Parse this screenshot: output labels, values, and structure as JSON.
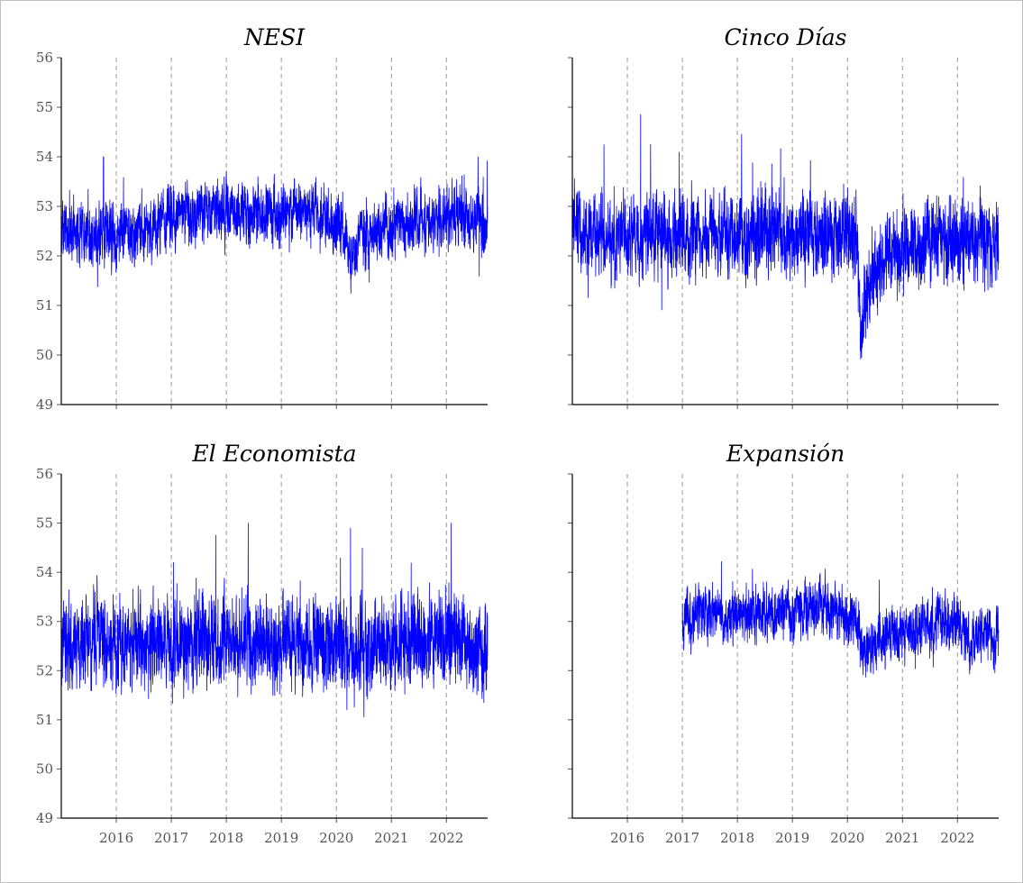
{
  "colors": {
    "series": "#0000ff",
    "grid": "#999999",
    "axis": "#000000"
  },
  "chart_data": [
    {
      "type": "line",
      "title": "NESI",
      "ylim": [
        49,
        56
      ],
      "xlim": [
        "2015-01-01",
        "2022-09-30"
      ],
      "yticks": [
        "49",
        "50",
        "51",
        "52",
        "53",
        "54",
        "55",
        "56"
      ],
      "xticks": [
        "2016",
        "2017",
        "2018",
        "2019",
        "2020",
        "2021",
        "2022"
      ],
      "show_xtick_labels": false,
      "show_ytick_labels": true,
      "grid": "vertical dashed at year boundaries",
      "series": [
        {
          "x": [
            "2015-01",
            "2015-07",
            "2016-01",
            "2016-07",
            "2017-01",
            "2017-07",
            "2018-01",
            "2018-07",
            "2019-01",
            "2019-07",
            "2020-01",
            "2020-03",
            "2020-04",
            "2020-06",
            "2020-09",
            "2021-01",
            "2021-07",
            "2022-01",
            "2022-07",
            "2022-09"
          ],
          "y": [
            52.5,
            52.5,
            52.4,
            52.5,
            52.8,
            52.9,
            52.9,
            52.9,
            52.8,
            52.9,
            52.7,
            52.5,
            51.8,
            52.3,
            52.5,
            52.6,
            52.7,
            52.8,
            52.7,
            52.6
          ],
          "noise": 0.55,
          "range": [
            50.5,
            54.0
          ]
        }
      ]
    },
    {
      "type": "line",
      "title": "Cinco Días",
      "ylim": [
        49,
        56
      ],
      "xlim": [
        "2015-01-01",
        "2022-09-30"
      ],
      "yticks": [
        "49",
        "50",
        "51",
        "52",
        "53",
        "54",
        "55",
        "56"
      ],
      "xticks": [
        "2016",
        "2017",
        "2018",
        "2019",
        "2020",
        "2021",
        "2022"
      ],
      "show_xtick_labels": false,
      "show_ytick_labels": false,
      "grid": "vertical dashed at year boundaries",
      "series": [
        {
          "x": [
            "2015-01",
            "2015-07",
            "2016-01",
            "2016-07",
            "2017-01",
            "2017-07",
            "2018-01",
            "2018-07",
            "2019-01",
            "2019-07",
            "2020-01",
            "2020-03",
            "2020-04",
            "2020-05",
            "2020-07",
            "2020-10",
            "2021-01",
            "2021-07",
            "2022-01",
            "2022-07",
            "2022-09"
          ],
          "y": [
            52.5,
            52.4,
            52.3,
            52.4,
            52.4,
            52.5,
            52.4,
            52.5,
            52.4,
            52.4,
            52.4,
            52.2,
            50.5,
            51.2,
            51.7,
            52.0,
            52.1,
            52.3,
            52.3,
            52.2,
            52.3
          ],
          "noise": 0.75,
          "range": [
            49.5,
            56.0
          ]
        }
      ]
    },
    {
      "type": "line",
      "title": "El Economista",
      "ylim": [
        49,
        56
      ],
      "xlim": [
        "2015-01-01",
        "2022-09-30"
      ],
      "yticks": [
        "49",
        "50",
        "51",
        "52",
        "53",
        "54",
        "55",
        "56"
      ],
      "xticks": [
        "2016",
        "2017",
        "2018",
        "2019",
        "2020",
        "2021",
        "2022"
      ],
      "show_xtick_labels": true,
      "show_ytick_labels": true,
      "grid": "vertical dashed at year boundaries",
      "series": [
        {
          "x": [
            "2015-01",
            "2015-07",
            "2016-01",
            "2016-07",
            "2017-01",
            "2017-07",
            "2018-01",
            "2018-07",
            "2019-01",
            "2019-07",
            "2020-01",
            "2020-04",
            "2020-07",
            "2021-01",
            "2021-07",
            "2022-01",
            "2022-07",
            "2022-09"
          ],
          "y": [
            52.5,
            52.6,
            52.5,
            52.6,
            52.5,
            52.6,
            52.7,
            52.6,
            52.5,
            52.6,
            52.5,
            52.2,
            52.4,
            52.6,
            52.8,
            52.7,
            52.5,
            52.4
          ],
          "noise": 0.85,
          "range": [
            50.3,
            55.0
          ]
        }
      ]
    },
    {
      "type": "line",
      "title": "Expansión",
      "ylim": [
        49,
        56
      ],
      "xlim": [
        "2015-01-01",
        "2022-09-30"
      ],
      "yticks": [
        "49",
        "50",
        "51",
        "52",
        "53",
        "54",
        "55",
        "56"
      ],
      "xticks": [
        "2016",
        "2017",
        "2018",
        "2019",
        "2020",
        "2021",
        "2022"
      ],
      "show_xtick_labels": true,
      "show_ytick_labels": false,
      "grid": "vertical dashed at year boundaries",
      "series": [
        {
          "x": [
            "2017-01",
            "2017-07",
            "2018-01",
            "2018-07",
            "2019-01",
            "2019-07",
            "2020-01",
            "2020-03",
            "2020-05",
            "2020-08",
            "2021-01",
            "2021-07",
            "2022-01",
            "2022-04",
            "2022-07",
            "2022-09"
          ],
          "y": [
            53.0,
            53.1,
            53.1,
            53.2,
            53.1,
            53.4,
            53.1,
            52.9,
            52.3,
            52.6,
            52.8,
            53.0,
            53.0,
            52.5,
            52.8,
            52.6
          ],
          "noise": 0.5,
          "range": [
            51.1,
            54.4
          ]
        }
      ]
    }
  ]
}
